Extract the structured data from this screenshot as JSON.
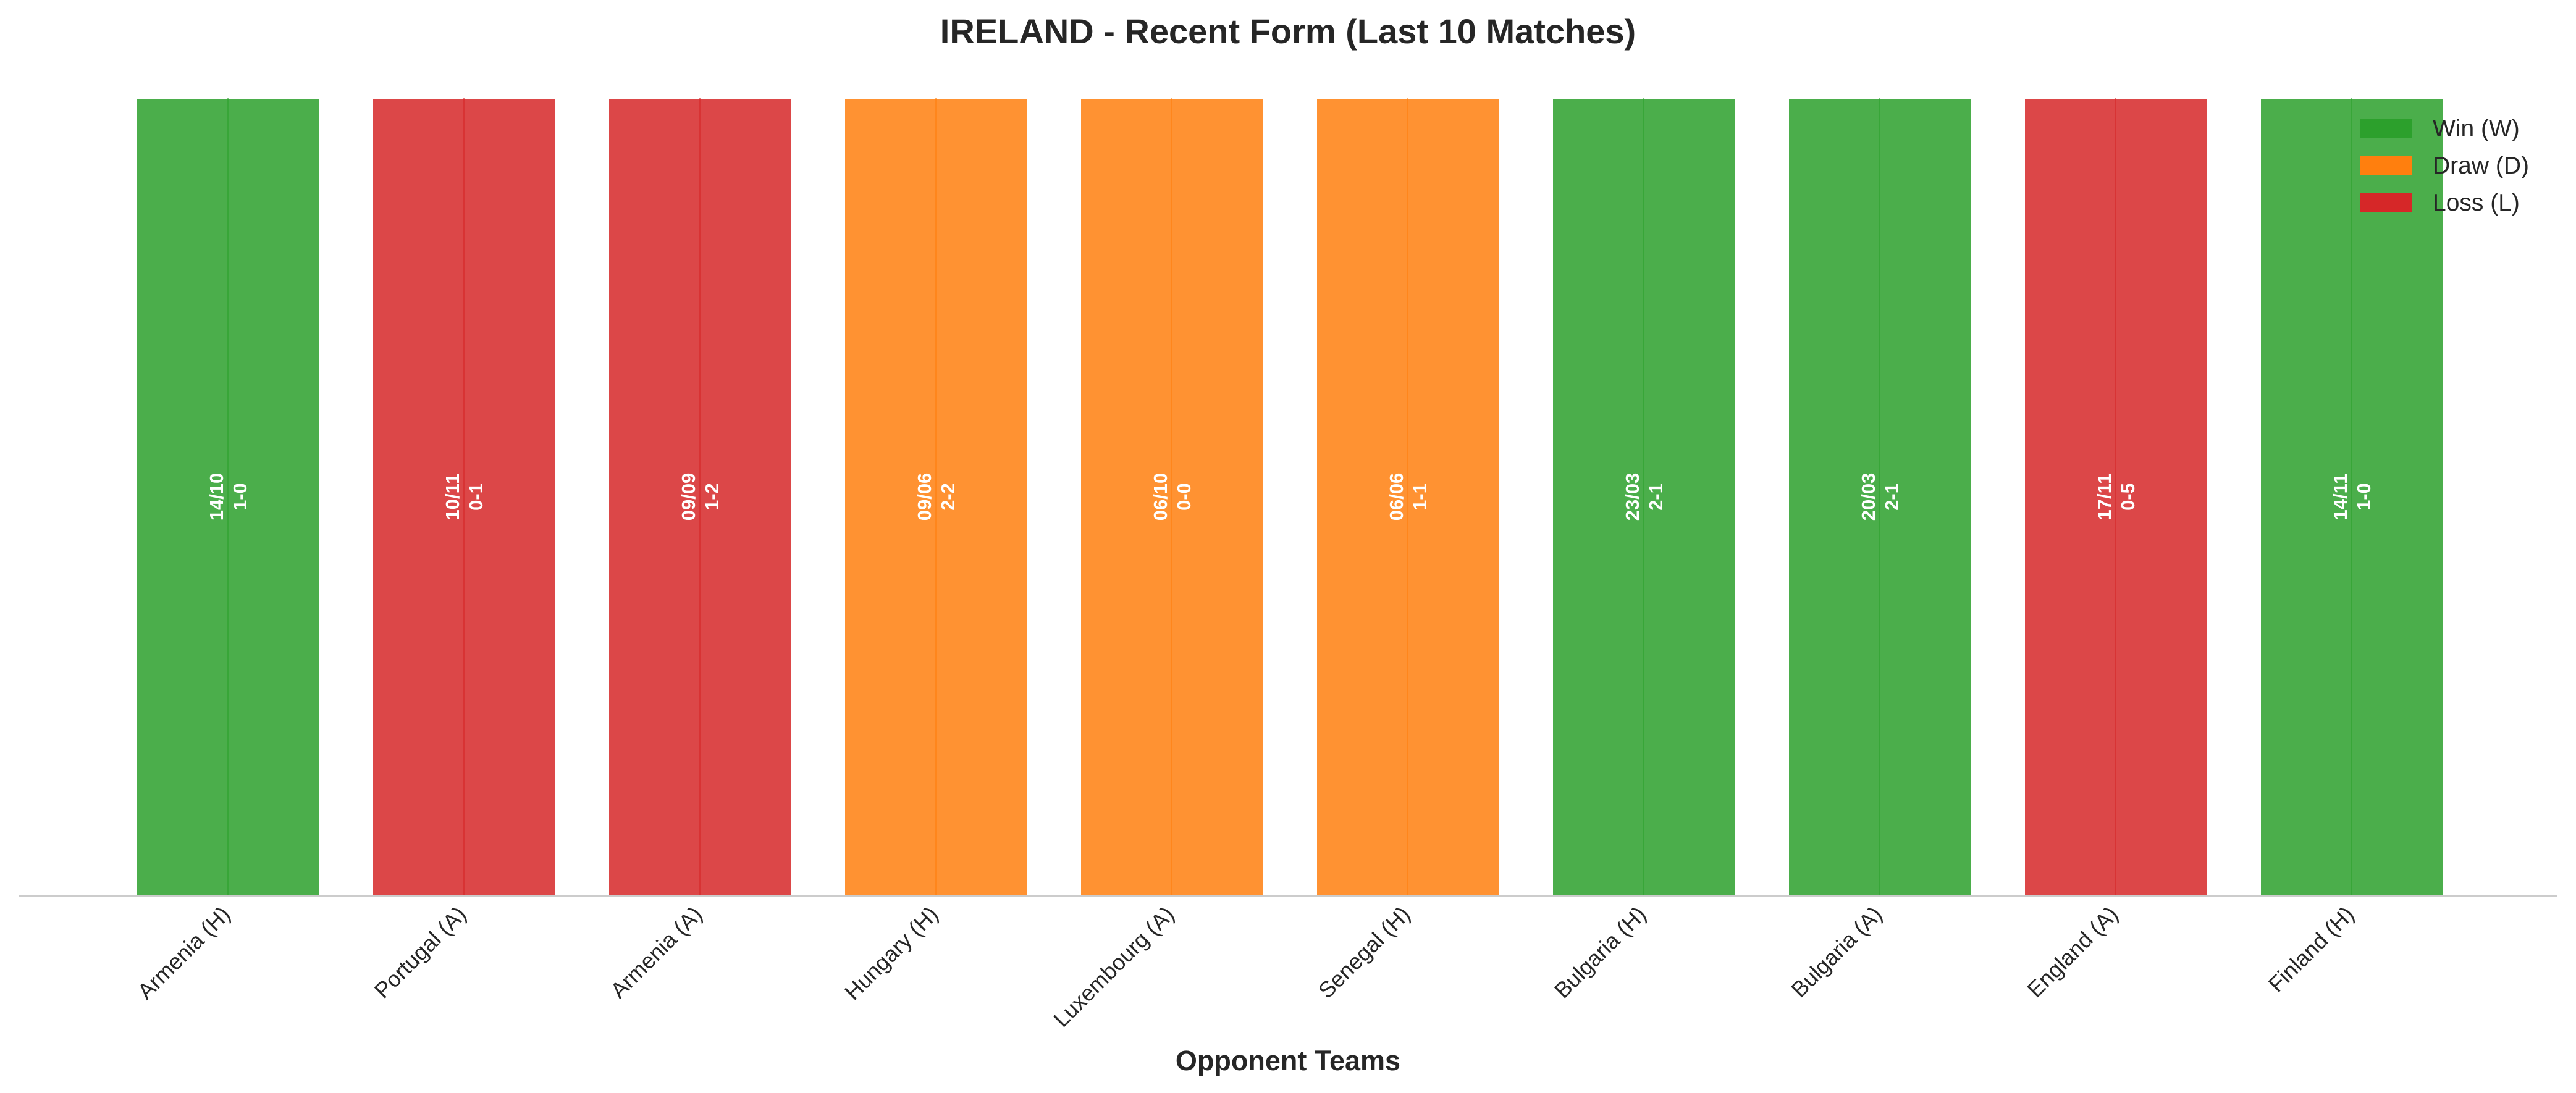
{
  "chart_data": {
    "type": "bar",
    "title": "IRELAND - Recent Form (Last 10 Matches)",
    "xlabel": "Opponent Teams",
    "ylabel": "",
    "ylim": [
      0,
      1
    ],
    "grid": false,
    "legend_position": "top-right",
    "categories": [
      "Armenia (H)",
      "Portugal (A)",
      "Armenia (A)",
      "Hungary (H)",
      "Luxembourg (A)",
      "Senegal (H)",
      "Bulgaria (H)",
      "Bulgaria (A)",
      "England (A)",
      "Finland (H)"
    ],
    "values": [
      1,
      1,
      1,
      1,
      1,
      1,
      1,
      1,
      1,
      1
    ],
    "results": [
      "W",
      "L",
      "L",
      "D",
      "D",
      "D",
      "W",
      "W",
      "L",
      "W"
    ],
    "dates": [
      "14/10",
      "10/11",
      "09/09",
      "09/06",
      "06/10",
      "06/06",
      "23/03",
      "20/03",
      "17/11",
      "14/11"
    ],
    "scores": [
      "1-0",
      "0-1",
      "1-2",
      "2-2",
      "0-0",
      "1-1",
      "2-1",
      "2-1",
      "0-5",
      "1-0"
    ],
    "legend": [
      {
        "key": "W",
        "label": "Win (W)",
        "color": "#2ca02c"
      },
      {
        "key": "D",
        "label": "Draw (D)",
        "color": "#ff7f0e"
      },
      {
        "key": "L",
        "label": "Loss (L)",
        "color": "#d62728"
      }
    ]
  }
}
